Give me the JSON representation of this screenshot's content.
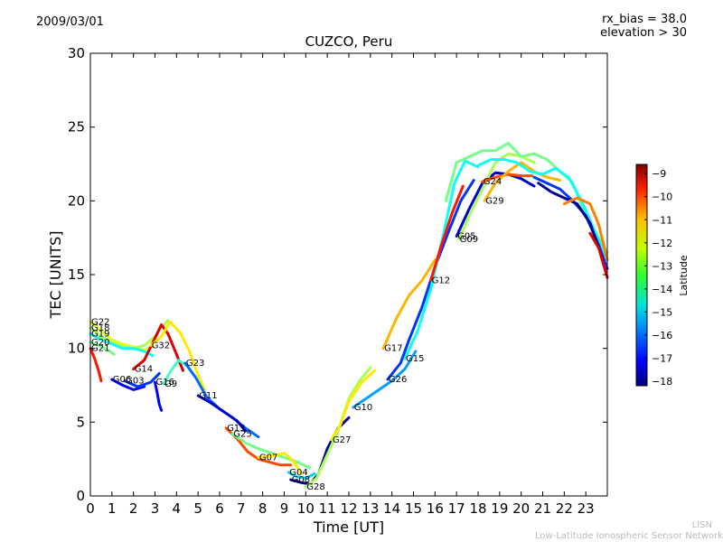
{
  "header": {
    "date": "2009/03/01",
    "rx_bias": "rx_bias = 38.0",
    "elevation": "elevation > 30"
  },
  "footer": {
    "line1": "LISN",
    "line2": "Low-Latitude Ionospheric Sensor Network"
  },
  "chart_data": {
    "type": "line",
    "title": "CUZCO, Peru",
    "xlabel": "Time [UT]",
    "ylabel": "TEC [UNITS]",
    "xlim": [
      0,
      24
    ],
    "ylim": [
      0,
      30
    ],
    "xticks": [
      0,
      1,
      2,
      3,
      4,
      5,
      6,
      7,
      8,
      9,
      10,
      11,
      12,
      13,
      14,
      15,
      16,
      17,
      18,
      19,
      20,
      21,
      22,
      23
    ],
    "yticks": [
      0,
      5,
      10,
      15,
      20,
      25,
      30
    ],
    "colorbar": {
      "label": "Latitude",
      "range": [
        -18.2,
        -8.6
      ],
      "ticks": [
        -9,
        -10,
        -11,
        -12,
        -13,
        -14,
        -15,
        -16,
        -17,
        -18
      ],
      "colormap": "jet"
    },
    "series": [
      {
        "name": "G22",
        "lat": -12.5,
        "points": [
          [
            0,
            11.8
          ],
          [
            0.5,
            11.2
          ],
          [
            1,
            10.6
          ],
          [
            1.5,
            10.3
          ],
          [
            2,
            10.1
          ],
          [
            2.5,
            9.9
          ],
          [
            2.9,
            10.1
          ]
        ]
      },
      {
        "name": "G18",
        "lat": -13.0,
        "points": [
          [
            0,
            11.4
          ],
          [
            0.5,
            10.8
          ],
          [
            1,
            10.4
          ],
          [
            1.5,
            10.1
          ],
          [
            2,
            10.0
          ],
          [
            2.5,
            10.2
          ],
          [
            3,
            10.8
          ],
          [
            3.3,
            11.4
          ],
          [
            3.6,
            11.9
          ]
        ]
      },
      {
        "name": "G19",
        "lat": -14.5,
        "points": [
          [
            0,
            11.0
          ],
          [
            0.5,
            10.6
          ],
          [
            1,
            10.3
          ],
          [
            1.5,
            10.0
          ],
          [
            2,
            10.0
          ],
          [
            2.5,
            9.8
          ],
          [
            2.9,
            9.5
          ]
        ]
      },
      {
        "name": "G20",
        "lat": -13.5,
        "points": [
          [
            0,
            10.4
          ],
          [
            0.4,
            10.2
          ],
          [
            0.8,
            9.9
          ],
          [
            1.1,
            9.6
          ]
        ]
      },
      {
        "name": "G21",
        "lat": -10.0,
        "points": [
          [
            0,
            10.0
          ],
          [
            0.2,
            9.3
          ],
          [
            0.4,
            8.4
          ],
          [
            0.5,
            7.8
          ]
        ]
      },
      {
        "name": "G06",
        "lat": -17.0,
        "points": [
          [
            1,
            7.9
          ],
          [
            1.5,
            7.5
          ],
          [
            2,
            7.2
          ],
          [
            2.5,
            7.4
          ]
        ]
      },
      {
        "name": "G03",
        "lat": -16.5,
        "points": [
          [
            1.6,
            7.8
          ],
          [
            2.2,
            7.4
          ],
          [
            2.8,
            7.7
          ],
          [
            3.2,
            8.3
          ]
        ]
      },
      {
        "name": "G14",
        "lat": -9.5,
        "points": [
          [
            2,
            8.6
          ],
          [
            2.5,
            9.2
          ],
          [
            3,
            10.7
          ],
          [
            3.3,
            11.6
          ],
          [
            3.6,
            11.0
          ],
          [
            4,
            9.6
          ],
          [
            4.3,
            8.5
          ]
        ]
      },
      {
        "name": "G32",
        "lat": -12.0,
        "points": [
          [
            2.8,
            10.2
          ],
          [
            3.3,
            10.8
          ],
          [
            3.7,
            11.8
          ],
          [
            4.2,
            11.0
          ],
          [
            4.6,
            9.8
          ],
          [
            5,
            8.2
          ],
          [
            5.3,
            7.2
          ]
        ]
      },
      {
        "name": "G16",
        "lat": -17.0,
        "points": [
          [
            3,
            7.7
          ],
          [
            3.1,
            7.0
          ],
          [
            3.2,
            6.2
          ],
          [
            3.3,
            5.8
          ]
        ]
      },
      {
        "name": "G9",
        "lat": -14.0,
        "points": [
          [
            3.4,
            7.6
          ],
          [
            3.7,
            8.4
          ],
          [
            4.1,
            9.2
          ],
          [
            4.5,
            8.8
          ],
          [
            4.9,
            8.0
          ]
        ]
      },
      {
        "name": "G23",
        "lat": -16.0,
        "points": [
          [
            4.4,
            9.0
          ],
          [
            4.9,
            8.0
          ],
          [
            5.4,
            6.7
          ],
          [
            6,
            5.9
          ],
          [
            6.6,
            5.3
          ],
          [
            7.2,
            4.6
          ],
          [
            7.8,
            4.0
          ]
        ]
      },
      {
        "name": "G11",
        "lat": -17.5,
        "points": [
          [
            5,
            6.8
          ],
          [
            5.6,
            6.3
          ],
          [
            6.2,
            5.7
          ],
          [
            6.8,
            5.1
          ],
          [
            7.2,
            4.4
          ]
        ]
      },
      {
        "name": "G13",
        "lat": -10.5,
        "points": [
          [
            6.3,
            4.6
          ],
          [
            6.8,
            3.9
          ],
          [
            7.3,
            3.0
          ],
          [
            7.8,
            2.5
          ],
          [
            8.3,
            2.3
          ],
          [
            8.8,
            2.1
          ],
          [
            9.3,
            2.1
          ]
        ]
      },
      {
        "name": "G25",
        "lat": -13.5,
        "points": [
          [
            6.6,
            4.2
          ],
          [
            7.2,
            3.6
          ],
          [
            7.8,
            3.2
          ],
          [
            8.4,
            2.9
          ],
          [
            9,
            2.6
          ],
          [
            9.6,
            2.3
          ],
          [
            10.2,
            1.9
          ]
        ]
      },
      {
        "name": "G07",
        "lat": -12.0,
        "points": [
          [
            7.8,
            2.6
          ],
          [
            8.4,
            2.7
          ],
          [
            9,
            2.9
          ],
          [
            9.4,
            2.4
          ],
          [
            9.8,
            1.5
          ]
        ]
      },
      {
        "name": "G04",
        "lat": -15.0,
        "points": [
          [
            9.2,
            1.6
          ],
          [
            9.6,
            1.3
          ],
          [
            10,
            1.2
          ],
          [
            10.4,
            1.5
          ]
        ]
      },
      {
        "name": "G08",
        "lat": -18.0,
        "points": [
          [
            9.3,
            1.1
          ],
          [
            9.8,
            0.9
          ],
          [
            10.2,
            0.8
          ],
          [
            10.6,
            1.5
          ],
          [
            11,
            3.2
          ],
          [
            11.5,
            4.6
          ],
          [
            12,
            5.3
          ]
        ]
      },
      {
        "name": "G28",
        "lat": -13.0,
        "points": [
          [
            10,
            0.6
          ],
          [
            10.5,
            1.2
          ],
          [
            11,
            2.8
          ],
          [
            11.5,
            4.4
          ],
          [
            12,
            6.6
          ],
          [
            12.5,
            7.8
          ],
          [
            13,
            8.7
          ]
        ]
      },
      {
        "name": "G27",
        "lat": -12.0,
        "points": [
          [
            11.2,
            3.8
          ],
          [
            11.6,
            4.8
          ],
          [
            12,
            6.4
          ],
          [
            12.6,
            7.7
          ],
          [
            13.2,
            8.5
          ]
        ]
      },
      {
        "name": "G10",
        "lat": -15.5,
        "points": [
          [
            12.2,
            6.0
          ],
          [
            12.8,
            6.6
          ],
          [
            13.4,
            7.2
          ],
          [
            14,
            7.8
          ],
          [
            14.6,
            8.6
          ],
          [
            15.1,
            9.8
          ]
        ]
      },
      {
        "name": "G17",
        "lat": -11.5,
        "points": [
          [
            13.6,
            10.0
          ],
          [
            14.2,
            12.0
          ],
          [
            14.8,
            13.6
          ],
          [
            15.4,
            14.6
          ],
          [
            16,
            16.0
          ]
        ]
      },
      {
        "name": "G26",
        "lat": -16.5,
        "points": [
          [
            13.8,
            7.9
          ],
          [
            14.4,
            9.0
          ],
          [
            14.8,
            10.6
          ],
          [
            15.4,
            12.8
          ],
          [
            16,
            15.5
          ],
          [
            16.6,
            17.8
          ],
          [
            17.2,
            20.0
          ],
          [
            17.8,
            21.4
          ]
        ]
      },
      {
        "name": "G15",
        "lat": -14.5,
        "points": [
          [
            14.6,
            9.3
          ],
          [
            15.2,
            11.2
          ],
          [
            15.8,
            14.0
          ],
          [
            16.4,
            17.8
          ],
          [
            16.9,
            21.2
          ],
          [
            17.4,
            22.7
          ],
          [
            18,
            22.3
          ]
        ]
      },
      {
        "name": "G12",
        "lat": -10.0,
        "points": [
          [
            15.8,
            14.6
          ],
          [
            16.3,
            17.0
          ],
          [
            16.8,
            19.2
          ],
          [
            17.3,
            21.0
          ]
        ]
      },
      {
        "name": "G05",
        "lat": -17.5,
        "points": [
          [
            17,
            17.6
          ],
          [
            17.6,
            19.5
          ],
          [
            18.2,
            21.2
          ],
          [
            18.8,
            21.9
          ],
          [
            19.4,
            21.8
          ],
          [
            20,
            21.5
          ],
          [
            20.6,
            21.0
          ]
        ]
      },
      {
        "name": "G09",
        "lat": -13.0,
        "points": [
          [
            17.1,
            17.4
          ],
          [
            17.6,
            19.0
          ],
          [
            18.2,
            20.8
          ],
          [
            18.8,
            22.6
          ],
          [
            19.4,
            23.2
          ],
          [
            20,
            23.0
          ],
          [
            20.6,
            22.6
          ]
        ]
      },
      {
        "name": "G24",
        "lat": -10.5,
        "points": [
          [
            18.2,
            21.3
          ],
          [
            18.8,
            21.6
          ],
          [
            19.4,
            21.8
          ],
          [
            20,
            21.7
          ],
          [
            20.5,
            21.7
          ]
        ]
      },
      {
        "name": "G29",
        "lat": -11.5,
        "points": [
          [
            18.3,
            20.0
          ],
          [
            18.8,
            21.2
          ],
          [
            19.4,
            22.0
          ],
          [
            20,
            22.6
          ],
          [
            20.6,
            22.0
          ],
          [
            21.2,
            21.6
          ],
          [
            21.8,
            21.4
          ]
        ]
      },
      {
        "name": "",
        "lat": -13.5,
        "points": [
          [
            16.5,
            20.0
          ],
          [
            17,
            22.6
          ],
          [
            17.6,
            23.0
          ],
          [
            18.2,
            23.4
          ],
          [
            18.8,
            23.4
          ],
          [
            19.4,
            23.9
          ],
          [
            20,
            23.0
          ],
          [
            20.6,
            23.2
          ],
          [
            21.2,
            22.8
          ],
          [
            21.8,
            22.0
          ],
          [
            22.4,
            21.2
          ],
          [
            23,
            19.0
          ],
          [
            23.6,
            17.5
          ],
          [
            24,
            16.5
          ]
        ]
      },
      {
        "name": "",
        "lat": -14.5,
        "points": [
          [
            18,
            22.4
          ],
          [
            18.6,
            22.8
          ],
          [
            19.2,
            22.8
          ],
          [
            19.8,
            22.6
          ],
          [
            20.4,
            22.0
          ],
          [
            21,
            21.8
          ],
          [
            21.6,
            22.2
          ],
          [
            22.2,
            21.6
          ],
          [
            22.8,
            20.0
          ],
          [
            23.4,
            18.0
          ],
          [
            24,
            16.0
          ]
        ]
      },
      {
        "name": "",
        "lat": -16.5,
        "points": [
          [
            20.6,
            21.6
          ],
          [
            21.2,
            21.2
          ],
          [
            21.8,
            20.8
          ],
          [
            22.4,
            20.0
          ],
          [
            23,
            19.0
          ],
          [
            23.6,
            17.0
          ],
          [
            24,
            15.4
          ]
        ]
      },
      {
        "name": "",
        "lat": -18.0,
        "points": [
          [
            20.8,
            21.2
          ],
          [
            21.4,
            20.6
          ],
          [
            22,
            20.2
          ],
          [
            22.6,
            19.8
          ],
          [
            23.2,
            18.5
          ],
          [
            23.8,
            16.0
          ]
        ]
      },
      {
        "name": "",
        "lat": -11.0,
        "points": [
          [
            22,
            19.8
          ],
          [
            22.6,
            20.2
          ],
          [
            23.2,
            19.8
          ],
          [
            23.6,
            18.4
          ],
          [
            24,
            16.0
          ]
        ]
      },
      {
        "name": "",
        "lat": -9.5,
        "points": [
          [
            23.2,
            17.8
          ],
          [
            23.6,
            16.8
          ],
          [
            24,
            14.8
          ]
        ]
      }
    ]
  }
}
